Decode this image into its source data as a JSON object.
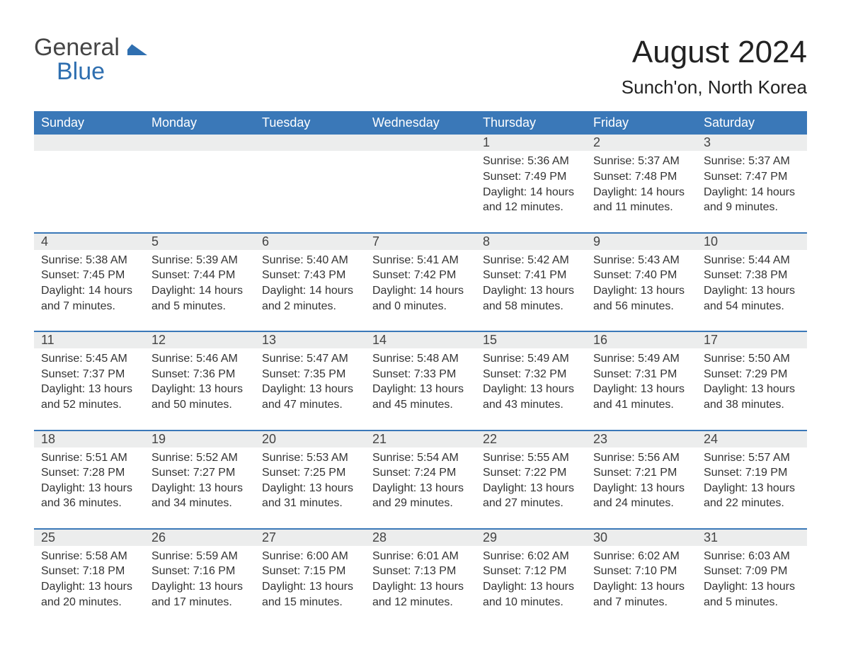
{
  "colors": {
    "header_bg": "#3a78b8",
    "header_text": "#ffffff",
    "row_border": "#3a78b8",
    "daynum_bg": "#eceded",
    "text": "#333333",
    "logo_gray": "#454545",
    "logo_blue": "#2f6fb0",
    "background": "#ffffff"
  },
  "logo": {
    "part1": "General",
    "part2": "Blue"
  },
  "title": "August 2024",
  "subtitle": "Sunch'on, North Korea",
  "day_headers": [
    "Sunday",
    "Monday",
    "Tuesday",
    "Wednesday",
    "Thursday",
    "Friday",
    "Saturday"
  ],
  "weeks": [
    {
      "nums": [
        "",
        "",
        "",
        "",
        "1",
        "2",
        "3"
      ],
      "cells": [
        null,
        null,
        null,
        null,
        {
          "sunrise": "5:36 AM",
          "sunset": "7:49 PM",
          "daylight": "14 hours and 12 minutes."
        },
        {
          "sunrise": "5:37 AM",
          "sunset": "7:48 PM",
          "daylight": "14 hours and 11 minutes."
        },
        {
          "sunrise": "5:37 AM",
          "sunset": "7:47 PM",
          "daylight": "14 hours and 9 minutes."
        }
      ]
    },
    {
      "nums": [
        "4",
        "5",
        "6",
        "7",
        "8",
        "9",
        "10"
      ],
      "cells": [
        {
          "sunrise": "5:38 AM",
          "sunset": "7:45 PM",
          "daylight": "14 hours and 7 minutes."
        },
        {
          "sunrise": "5:39 AM",
          "sunset": "7:44 PM",
          "daylight": "14 hours and 5 minutes."
        },
        {
          "sunrise": "5:40 AM",
          "sunset": "7:43 PM",
          "daylight": "14 hours and 2 minutes."
        },
        {
          "sunrise": "5:41 AM",
          "sunset": "7:42 PM",
          "daylight": "14 hours and 0 minutes."
        },
        {
          "sunrise": "5:42 AM",
          "sunset": "7:41 PM",
          "daylight": "13 hours and 58 minutes."
        },
        {
          "sunrise": "5:43 AM",
          "sunset": "7:40 PM",
          "daylight": "13 hours and 56 minutes."
        },
        {
          "sunrise": "5:44 AM",
          "sunset": "7:38 PM",
          "daylight": "13 hours and 54 minutes."
        }
      ]
    },
    {
      "nums": [
        "11",
        "12",
        "13",
        "14",
        "15",
        "16",
        "17"
      ],
      "cells": [
        {
          "sunrise": "5:45 AM",
          "sunset": "7:37 PM",
          "daylight": "13 hours and 52 minutes."
        },
        {
          "sunrise": "5:46 AM",
          "sunset": "7:36 PM",
          "daylight": "13 hours and 50 minutes."
        },
        {
          "sunrise": "5:47 AM",
          "sunset": "7:35 PM",
          "daylight": "13 hours and 47 minutes."
        },
        {
          "sunrise": "5:48 AM",
          "sunset": "7:33 PM",
          "daylight": "13 hours and 45 minutes."
        },
        {
          "sunrise": "5:49 AM",
          "sunset": "7:32 PM",
          "daylight": "13 hours and 43 minutes."
        },
        {
          "sunrise": "5:49 AM",
          "sunset": "7:31 PM",
          "daylight": "13 hours and 41 minutes."
        },
        {
          "sunrise": "5:50 AM",
          "sunset": "7:29 PM",
          "daylight": "13 hours and 38 minutes."
        }
      ]
    },
    {
      "nums": [
        "18",
        "19",
        "20",
        "21",
        "22",
        "23",
        "24"
      ],
      "cells": [
        {
          "sunrise": "5:51 AM",
          "sunset": "7:28 PM",
          "daylight": "13 hours and 36 minutes."
        },
        {
          "sunrise": "5:52 AM",
          "sunset": "7:27 PM",
          "daylight": "13 hours and 34 minutes."
        },
        {
          "sunrise": "5:53 AM",
          "sunset": "7:25 PM",
          "daylight": "13 hours and 31 minutes."
        },
        {
          "sunrise": "5:54 AM",
          "sunset": "7:24 PM",
          "daylight": "13 hours and 29 minutes."
        },
        {
          "sunrise": "5:55 AM",
          "sunset": "7:22 PM",
          "daylight": "13 hours and 27 minutes."
        },
        {
          "sunrise": "5:56 AM",
          "sunset": "7:21 PM",
          "daylight": "13 hours and 24 minutes."
        },
        {
          "sunrise": "5:57 AM",
          "sunset": "7:19 PM",
          "daylight": "13 hours and 22 minutes."
        }
      ]
    },
    {
      "nums": [
        "25",
        "26",
        "27",
        "28",
        "29",
        "30",
        "31"
      ],
      "cells": [
        {
          "sunrise": "5:58 AM",
          "sunset": "7:18 PM",
          "daylight": "13 hours and 20 minutes."
        },
        {
          "sunrise": "5:59 AM",
          "sunset": "7:16 PM",
          "daylight": "13 hours and 17 minutes."
        },
        {
          "sunrise": "6:00 AM",
          "sunset": "7:15 PM",
          "daylight": "13 hours and 15 minutes."
        },
        {
          "sunrise": "6:01 AM",
          "sunset": "7:13 PM",
          "daylight": "13 hours and 12 minutes."
        },
        {
          "sunrise": "6:02 AM",
          "sunset": "7:12 PM",
          "daylight": "13 hours and 10 minutes."
        },
        {
          "sunrise": "6:02 AM",
          "sunset": "7:10 PM",
          "daylight": "13 hours and 7 minutes."
        },
        {
          "sunrise": "6:03 AM",
          "sunset": "7:09 PM",
          "daylight": "13 hours and 5 minutes."
        }
      ]
    }
  ],
  "labels": {
    "sunrise": "Sunrise: ",
    "sunset": "Sunset: ",
    "daylight": "Daylight: "
  }
}
